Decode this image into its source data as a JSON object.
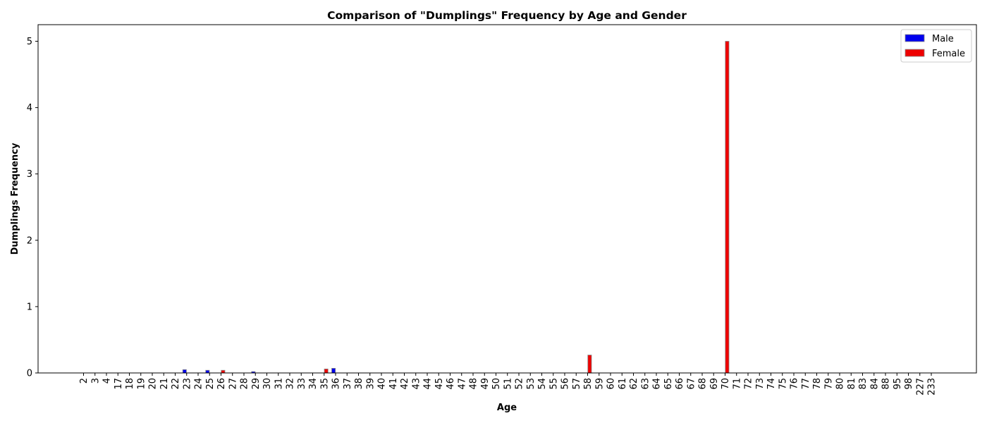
{
  "chart_data": {
    "type": "bar",
    "title": "Comparison of \"Dumplings\" Frequency by Age and Gender",
    "xlabel": "Age",
    "ylabel": "Dumplings Frequency",
    "ylim": [
      0,
      5.25
    ],
    "yticks": [
      "0",
      "1",
      "2",
      "3",
      "4",
      "5"
    ],
    "grid": false,
    "legend_position": "top-right",
    "categories": [
      "2",
      "3",
      "4",
      "17",
      "18",
      "19",
      "20",
      "21",
      "22",
      "23",
      "24",
      "25",
      "26",
      "27",
      "28",
      "29",
      "30",
      "31",
      "32",
      "33",
      "34",
      "35",
      "36",
      "37",
      "38",
      "39",
      "40",
      "41",
      "42",
      "43",
      "44",
      "45",
      "46",
      "47",
      "48",
      "49",
      "50",
      "51",
      "52",
      "53",
      "54",
      "55",
      "56",
      "57",
      "58",
      "59",
      "60",
      "61",
      "62",
      "63",
      "64",
      "65",
      "66",
      "67",
      "68",
      "69",
      "70",
      "71",
      "72",
      "73",
      "74",
      "75",
      "76",
      "77",
      "78",
      "79",
      "80",
      "81",
      "83",
      "84",
      "88",
      "95",
      "98",
      "227",
      "233"
    ],
    "series": [
      {
        "name": "Male",
        "color": "#0000ee",
        "values": [
          0,
          0,
          0,
          0,
          0,
          0,
          0,
          0,
          0,
          0.05,
          0,
          0.04,
          0,
          0,
          0,
          0.02,
          0,
          0,
          0,
          0,
          0,
          0,
          0.07,
          0,
          0,
          0,
          0,
          0,
          0,
          0,
          0,
          0,
          0,
          0,
          0,
          0,
          0,
          0,
          0,
          0,
          0,
          0,
          0,
          0,
          0,
          0,
          0,
          0,
          0,
          0,
          0,
          0,
          0,
          0,
          0,
          0,
          0,
          0,
          0,
          0,
          0,
          0,
          0,
          0,
          0,
          0,
          0,
          0,
          0,
          0,
          0,
          0,
          0,
          0,
          0
        ]
      },
      {
        "name": "Female",
        "color": "#ee0000",
        "values": [
          0,
          0,
          0,
          0,
          0,
          0,
          0,
          0,
          0,
          0,
          0,
          0,
          0.04,
          0,
          0,
          0,
          0,
          0,
          0,
          0,
          0,
          0.06,
          0,
          0,
          0,
          0,
          0,
          0,
          0,
          0,
          0,
          0,
          0,
          0,
          0,
          0,
          0,
          0,
          0,
          0,
          0,
          0,
          0,
          0,
          0.27,
          0,
          0,
          0,
          0,
          0,
          0,
          0,
          0,
          0,
          0,
          0,
          5.0,
          0,
          0,
          0,
          0,
          0,
          0,
          0,
          0,
          0,
          0,
          0,
          0,
          0,
          0,
          0,
          0,
          0,
          0
        ]
      }
    ]
  }
}
